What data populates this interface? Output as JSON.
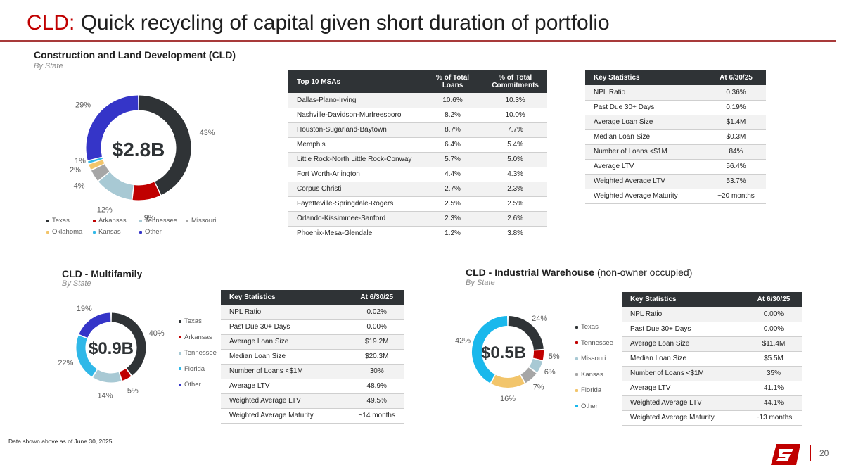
{
  "title": {
    "accent": "CLD:",
    "main": " Quick recycling of capital given short duration of portfolio"
  },
  "colors": {
    "texas": "#2f3336",
    "arkansas": "#c00000",
    "tennessee": "#a8c9d4",
    "missouri": "#a6a6a6",
    "oklahoma": "#f2c56b",
    "kansas": "#30b8e8",
    "other": "#3535c8"
  },
  "cld": {
    "title": "Construction and Land Development (CLD)",
    "subtitle": "By State",
    "total": "$2.8B",
    "segments": [
      {
        "name": "Texas",
        "value": 43,
        "label": "43%",
        "color": "#2f3336"
      },
      {
        "name": "Arkansas",
        "value": 9,
        "label": "9%",
        "color": "#c00000"
      },
      {
        "name": "Tennessee",
        "value": 12,
        "label": "12%",
        "color": "#a8c9d4"
      },
      {
        "name": "Missouri",
        "value": 4,
        "label": "4%",
        "color": "#a6a6a6"
      },
      {
        "name": "Oklahoma",
        "value": 2,
        "label": "2%",
        "color": "#f2c56b"
      },
      {
        "name": "Kansas",
        "value": 1,
        "label": "1%",
        "color": "#30b8e8"
      },
      {
        "name": "Other",
        "value": 29,
        "label": "29%",
        "color": "#3535c8"
      }
    ],
    "msa_table": {
      "headers": [
        "Top 10 MSAs",
        "% of Total Loans",
        "% of Total Commitments"
      ],
      "rows": [
        [
          "Dallas-Plano-Irving",
          "10.6%",
          "10.3%"
        ],
        [
          "Nashville-Davidson-Murfreesboro",
          "8.2%",
          "10.0%"
        ],
        [
          "Houston-Sugarland-Baytown",
          "8.7%",
          "7.7%"
        ],
        [
          "Memphis",
          "6.4%",
          "5.4%"
        ],
        [
          "Little Rock-North Little Rock-Conway",
          "5.7%",
          "5.0%"
        ],
        [
          "Fort Worth-Arlington",
          "4.4%",
          "4.3%"
        ],
        [
          "Corpus Christi",
          "2.7%",
          "2.3%"
        ],
        [
          "Fayetteville-Springdale-Rogers",
          "2.5%",
          "2.5%"
        ],
        [
          "Orlando-Kissimmee-Sanford",
          "2.3%",
          "2.6%"
        ],
        [
          "Phoenix-Mesa-Glendale",
          "1.2%",
          "3.8%"
        ]
      ]
    },
    "stats": {
      "headers": [
        "Key Statistics",
        "At 6/30/25"
      ],
      "rows": [
        [
          "NPL Ratio",
          "0.36%"
        ],
        [
          "Past Due 30+ Days",
          "0.19%"
        ],
        [
          "Average Loan Size",
          "$1.4M"
        ],
        [
          "Median Loan Size",
          "$0.3M"
        ],
        [
          "Number of Loans <$1M",
          "84%"
        ],
        [
          "Average LTV",
          "56.4%"
        ],
        [
          "Weighted Average LTV",
          "53.7%"
        ],
        [
          "Weighted Average Maturity",
          "~20 months"
        ]
      ]
    }
  },
  "multifamily": {
    "title": "CLD - Multifamily",
    "subtitle": "By State",
    "total": "$0.9B",
    "segments": [
      {
        "name": "Texas",
        "value": 40,
        "label": "40%",
        "color": "#2f3336"
      },
      {
        "name": "Arkansas",
        "value": 5,
        "label": "5%",
        "color": "#c00000"
      },
      {
        "name": "Tennessee",
        "value": 14,
        "label": "14%",
        "color": "#a8c9d4"
      },
      {
        "name": "Florida",
        "value": 22,
        "label": "22%",
        "color": "#30b8e8"
      },
      {
        "name": "Other",
        "value": 19,
        "label": "19%",
        "color": "#3535c8"
      }
    ],
    "stats": {
      "headers": [
        "Key Statistics",
        "At 6/30/25"
      ],
      "rows": [
        [
          "NPL Ratio",
          "0.02%"
        ],
        [
          "Past Due 30+ Days",
          "0.00%"
        ],
        [
          "Average Loan Size",
          "$19.2M"
        ],
        [
          "Median Loan Size",
          "$20.3M"
        ],
        [
          "Number of Loans <$1M",
          "30%"
        ],
        [
          "Average LTV",
          "48.9%"
        ],
        [
          "Weighted Average LTV",
          "49.5%"
        ],
        [
          "Weighted Average Maturity",
          "~14 months"
        ]
      ]
    }
  },
  "industrial": {
    "title": "CLD - Industrial Warehouse",
    "title_suffix": "(non-owner occupied)",
    "subtitle": "By State",
    "total": "$0.5B",
    "segments": [
      {
        "name": "Texas",
        "value": 24,
        "label": "24%",
        "color": "#2f3336"
      },
      {
        "name": "Tennessee",
        "value": 5,
        "label": "5%",
        "color": "#c00000"
      },
      {
        "name": "Missouri",
        "value": 6,
        "label": "6%",
        "color": "#a8c9d4"
      },
      {
        "name": "Kansas",
        "value": 7,
        "label": "7%",
        "color": "#a6a6a6"
      },
      {
        "name": "Florida",
        "value": 16,
        "label": "16%",
        "color": "#f2c56b"
      },
      {
        "name": "Other",
        "value": 42,
        "label": "42%",
        "color": "#1ab8ec"
      }
    ],
    "stats": {
      "headers": [
        "Key Statistics",
        "At 6/30/25"
      ],
      "rows": [
        [
          "NPL Ratio",
          "0.00%"
        ],
        [
          "Past Due 30+ Days",
          "0.00%"
        ],
        [
          "Average Loan Size",
          "$11.4M"
        ],
        [
          "Median Loan Size",
          "$5.5M"
        ],
        [
          "Number of Loans <$1M",
          "35%"
        ],
        [
          "Average LTV",
          "41.1%"
        ],
        [
          "Weighted Average LTV",
          "44.1%"
        ],
        [
          "Weighted Average Maturity",
          "~13 months"
        ]
      ]
    }
  },
  "footnote": "Data shown above as of June 30, 2025",
  "page_number": "20",
  "logo_icon": "company-logo-icon"
}
